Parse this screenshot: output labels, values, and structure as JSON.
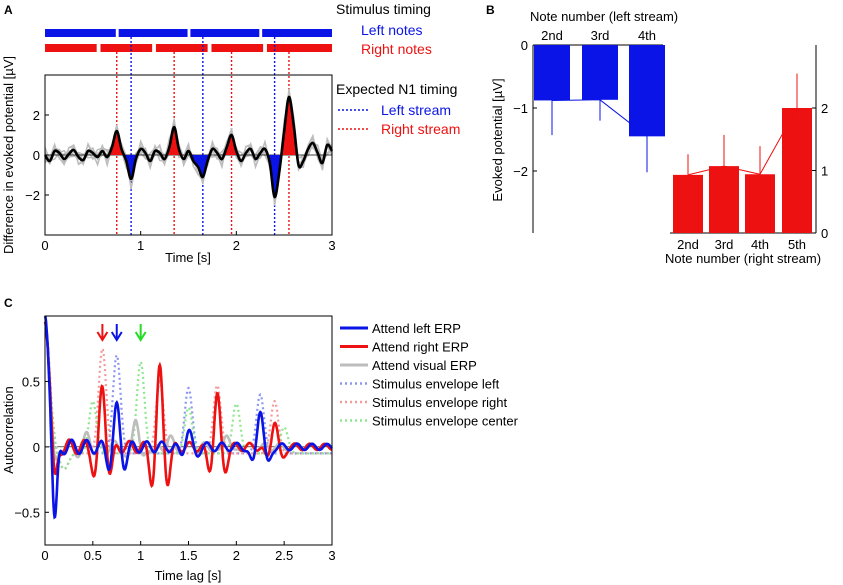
{
  "colors": {
    "left": "#0a14e6",
    "right": "#ee1111",
    "gray": "#bdbdbd",
    "black": "#000000",
    "left_light": "#8c96f0",
    "right_light": "#f29a9a",
    "center_light": "#8ee68e",
    "center_arrow": "#22dd22"
  },
  "chart_data": [
    {
      "id": "A",
      "panel_label": "A",
      "type": "line",
      "title": "",
      "xlabel": "Time [s]",
      "ylabel": "Difference in evoked potential [µV]",
      "xlim": [
        0,
        3
      ],
      "ylim": [
        -4,
        4
      ],
      "xticks": [
        "0",
        "1",
        "2",
        "3"
      ],
      "yticks": [
        "−2",
        "0",
        "2"
      ],
      "ytick_values": [
        -2,
        0,
        2
      ],
      "stimulus_timing_title": "Stimulus timing",
      "left_notes_label": "Left notes",
      "right_notes_label": "Right notes",
      "left_notes": [
        [
          0,
          0.74
        ],
        [
          0.77,
          1.49
        ],
        [
          1.52,
          2.24
        ],
        [
          2.27,
          3.0
        ]
      ],
      "right_notes": [
        [
          0,
          0.54
        ],
        [
          0.58,
          1.12
        ],
        [
          1.16,
          1.7
        ],
        [
          1.74,
          2.28
        ],
        [
          2.32,
          3.0
        ]
      ],
      "n1_title": "Expected N1 timing",
      "n1_left_label": "Left stream",
      "n1_right_label": "Right stream",
      "n1_left_times": [
        0.9,
        1.65,
        2.4
      ],
      "n1_right_times": [
        0.75,
        1.35,
        1.95,
        2.55
      ],
      "series": [
        {
          "name": "mean difference",
          "x": [
            0,
            0.05,
            0.1,
            0.15,
            0.2,
            0.25,
            0.3,
            0.35,
            0.4,
            0.45,
            0.5,
            0.55,
            0.6,
            0.65,
            0.7,
            0.75,
            0.8,
            0.85,
            0.9,
            0.95,
            1.0,
            1.05,
            1.1,
            1.15,
            1.2,
            1.25,
            1.3,
            1.35,
            1.4,
            1.45,
            1.5,
            1.55,
            1.6,
            1.65,
            1.7,
            1.75,
            1.8,
            1.85,
            1.9,
            1.95,
            2.0,
            2.05,
            2.1,
            2.15,
            2.2,
            2.25,
            2.3,
            2.35,
            2.4,
            2.45,
            2.5,
            2.55,
            2.6,
            2.65,
            2.7,
            2.75,
            2.8,
            2.85,
            2.9,
            2.95,
            3.0
          ],
          "y": [
            0,
            -0.3,
            0.2,
            0.1,
            -0.2,
            0.05,
            0.25,
            -0.1,
            -0.25,
            0.2,
            0.1,
            -0.1,
            0.2,
            -0.1,
            0.4,
            1.2,
            0.3,
            -0.3,
            -1.2,
            -0.2,
            0.3,
            0.1,
            -0.3,
            0.2,
            0.1,
            -0.2,
            0.4,
            1.4,
            0.3,
            -0.2,
            0.2,
            -0.3,
            -0.6,
            -1.1,
            -0.3,
            0.3,
            0.1,
            -0.2,
            0.4,
            1.0,
            0.2,
            -0.3,
            0.1,
            0.3,
            -0.2,
            0.1,
            0.3,
            -0.4,
            -2.1,
            -0.8,
            1.2,
            2.9,
            1.5,
            -0.5,
            -0.3,
            0.3,
            0.6,
            0.1,
            -0.4,
            0.5,
            0.2
          ]
        }
      ]
    },
    {
      "id": "B",
      "panel_label": "B",
      "type": "bar",
      "ylabel": "Evoked potential [µV]",
      "top_xlabel": "Note number (left stream)",
      "bottom_xlabel": "Note number (right stream)",
      "left_axis_ylim": [
        -3,
        0
      ],
      "left_yticks": [
        "0",
        "−1",
        "−2"
      ],
      "left_ytick_values": [
        0,
        -1,
        -2
      ],
      "right_axis_ylim": [
        0,
        3
      ],
      "right_yticks": [
        "0",
        "1",
        "2"
      ],
      "right_ytick_values": [
        0,
        1,
        2
      ],
      "left_categories": [
        "2nd",
        "3rd",
        "4th"
      ],
      "left_values": [
        -0.88,
        -0.87,
        -1.45
      ],
      "left_errors": [
        0.55,
        0.33,
        0.57
      ],
      "right_categories": [
        "2nd",
        "3rd",
        "4th",
        "5th"
      ],
      "right_values": [
        0.93,
        1.07,
        0.94,
        2.0
      ],
      "right_errors": [
        0.33,
        0.5,
        0.45,
        0.55
      ]
    },
    {
      "id": "C",
      "panel_label": "C",
      "type": "line",
      "xlabel": "Time lag [s]",
      "ylabel": "Autocorrelation",
      "xlim": [
        0,
        3
      ],
      "ylim": [
        -0.75,
        1.0
      ],
      "xticks": [
        "0",
        "0.5",
        "1",
        "1.5",
        "2",
        "2.5",
        "3"
      ],
      "xtick_values": [
        0,
        0.5,
        1,
        1.5,
        2,
        2.5,
        3
      ],
      "yticks": [
        "−0.5",
        "0",
        "0.5"
      ],
      "ytick_values": [
        -0.5,
        0,
        0.5
      ],
      "arrows": [
        {
          "x": 0.6,
          "color": "right"
        },
        {
          "x": 0.75,
          "color": "left"
        },
        {
          "x": 1.0,
          "color": "center_arrow"
        }
      ],
      "legend": [
        {
          "label": "Attend left ERP",
          "style": "solid",
          "color": "left"
        },
        {
          "label": "Attend right ERP",
          "style": "solid",
          "color": "right"
        },
        {
          "label": "Attend visual ERP",
          "style": "solid",
          "color": "gray"
        },
        {
          "label": "Stimulus envelope left",
          "style": "dotted",
          "color": "left_light"
        },
        {
          "label": "Stimulus envelope right",
          "style": "dotted",
          "color": "right_light"
        },
        {
          "label": "Stimulus envelope center",
          "style": "dotted",
          "color": "center_light"
        }
      ],
      "series": [
        {
          "name": "Stimulus envelope left",
          "peaks": [
            [
              0.75,
              0.75
            ],
            [
              1.5,
              0.5
            ],
            [
              2.25,
              0.45
            ]
          ],
          "base": -0.05
        },
        {
          "name": "Stimulus envelope right",
          "peaks": [
            [
              0.6,
              0.8
            ],
            [
              1.2,
              0.55
            ],
            [
              1.8,
              0.52
            ],
            [
              2.4,
              0.4
            ]
          ],
          "base": -0.05
        },
        {
          "name": "Stimulus envelope center",
          "peaks": [
            [
              0.5,
              0.4
            ],
            [
              1.0,
              0.7
            ],
            [
              1.5,
              0.35
            ],
            [
              2.0,
              0.38
            ],
            [
              2.5,
              0.2
            ]
          ],
          "base": -0.05
        },
        {
          "name": "Attend visual ERP",
          "peaks": [
            [
              0.45,
              0.1
            ],
            [
              0.95,
              0.25
            ],
            [
              1.3,
              0.1
            ],
            [
              1.9,
              0.12
            ]
          ],
          "base": 0
        },
        {
          "name": "Attend right ERP",
          "peaks": [
            [
              0.6,
              0.46
            ],
            [
              1.2,
              0.6
            ],
            [
              1.8,
              0.4
            ],
            [
              2.4,
              0.2
            ]
          ],
          "base": 0
        },
        {
          "name": "Attend left ERP",
          "peaks": [
            [
              0.75,
              0.3
            ],
            [
              1.5,
              0.12
            ],
            [
              2.25,
              0.3
            ]
          ],
          "base": 0
        }
      ]
    }
  ]
}
